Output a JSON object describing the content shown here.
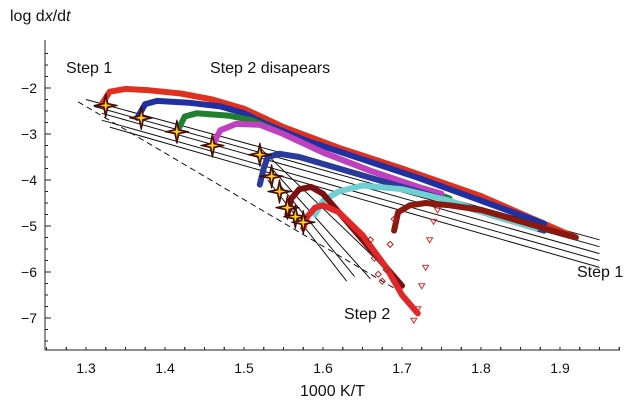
{
  "chart_data": {
    "type": "scatter",
    "title": "",
    "xlabel": "1000 K/T",
    "ylabel": "log dx/dt",
    "xlim": [
      1.25,
      1.97
    ],
    "ylim": [
      -7.5,
      -1.0
    ],
    "xticks": [
      "1.3",
      "1.4",
      "1.5",
      "1.6",
      "1.7",
      "1.8",
      "1.9"
    ],
    "yticks": [
      "−2",
      "−3",
      "−4",
      "−5",
      "−6",
      "−7"
    ],
    "grid": false,
    "annotations": [
      "Step 1",
      "Step 2 disapears",
      "Step 1",
      "Step 2"
    ],
    "series": [
      {
        "color": "#e03020",
        "marker": "dot",
        "x": [
          1.32,
          1.33,
          1.35,
          1.38,
          1.42,
          1.46,
          1.5,
          1.55,
          1.62,
          1.7,
          1.8,
          1.92
        ],
        "y": [
          -2.35,
          -2.08,
          -2.02,
          -2.05,
          -2.12,
          -2.25,
          -2.45,
          -2.85,
          -3.3,
          -3.75,
          -4.35,
          -5.25
        ]
      },
      {
        "color": "#2030a0",
        "marker": "dot",
        "x": [
          1.365,
          1.375,
          1.39,
          1.43,
          1.47,
          1.5,
          1.53,
          1.58,
          1.65,
          1.72,
          1.8,
          1.88
        ],
        "y": [
          -2.65,
          -2.35,
          -2.28,
          -2.32,
          -2.4,
          -2.55,
          -2.8,
          -3.15,
          -3.55,
          -3.95,
          -4.45,
          -4.95
        ]
      },
      {
        "color": "#208030",
        "marker": "dot",
        "x": [
          1.415,
          1.425,
          1.44,
          1.48,
          1.51,
          1.55,
          1.6,
          1.66,
          1.72,
          1.76
        ],
        "y": [
          -2.95,
          -2.62,
          -2.55,
          -2.6,
          -2.7,
          -3.0,
          -3.4,
          -3.8,
          -4.15,
          -4.4
        ]
      },
      {
        "color": "#c040c0",
        "marker": "dot",
        "x": [
          1.46,
          1.47,
          1.49,
          1.52,
          1.55,
          1.6,
          1.66,
          1.72,
          1.75
        ],
        "y": [
          -3.25,
          -2.92,
          -2.78,
          -2.8,
          -3.0,
          -3.4,
          -3.8,
          -4.15,
          -4.3
        ]
      },
      {
        "color": "#2a3a9a",
        "marker": "dot",
        "x": [
          1.52,
          1.525,
          1.53,
          1.545,
          1.57,
          1.62,
          1.68,
          1.75,
          1.82,
          1.88
        ],
        "y": [
          -4.1,
          -3.75,
          -3.5,
          -3.43,
          -3.5,
          -3.75,
          -4.05,
          -4.4,
          -4.8,
          -5.1
        ]
      },
      {
        "color": "#70d0d0",
        "marker": "dot",
        "x": [
          1.59,
          1.6,
          1.62,
          1.65,
          1.7,
          1.76,
          1.82,
          1.87
        ],
        "y": [
          -4.75,
          -4.45,
          -4.25,
          -4.12,
          -4.2,
          -4.45,
          -4.8,
          -5.05
        ]
      },
      {
        "color": "#7a1010",
        "marker": "dot",
        "x": [
          1.555,
          1.56,
          1.57,
          1.585,
          1.6,
          1.62,
          1.65,
          1.68,
          1.7
        ],
        "y": [
          -4.75,
          -4.4,
          -4.2,
          -4.15,
          -4.3,
          -4.7,
          -5.3,
          -5.9,
          -6.3
        ]
      },
      {
        "color": "#e02828",
        "marker": "dot",
        "x": [
          1.575,
          1.58,
          1.59,
          1.6,
          1.62,
          1.65,
          1.68,
          1.7,
          1.72
        ],
        "y": [
          -5.05,
          -4.8,
          -4.6,
          -4.55,
          -4.7,
          -5.2,
          -5.9,
          -6.5,
          -6.9
        ]
      },
      {
        "color": "#8a1a10",
        "marker": "dot",
        "x": [
          1.69,
          1.695,
          1.71,
          1.73,
          1.76,
          1.8,
          1.84,
          1.88,
          1.92
        ],
        "y": [
          -5.1,
          -4.7,
          -4.55,
          -4.5,
          -4.55,
          -4.65,
          -4.85,
          -5.05,
          -5.25
        ]
      },
      {
        "color": "#b02020",
        "marker": "open-diamond",
        "x": [
          1.66,
          1.665,
          1.67,
          1.675,
          1.68,
          1.685,
          1.69
        ],
        "y": [
          -5.3,
          -5.7,
          -6.05,
          -6.2,
          -5.95,
          -5.4,
          -4.85
        ]
      },
      {
        "color": "#d03030",
        "marker": "open-triangle",
        "x": [
          1.715,
          1.72,
          1.725,
          1.73,
          1.735,
          1.74,
          1.745
        ],
        "y": [
          -7.05,
          -6.8,
          -6.3,
          -5.9,
          -5.3,
          -4.9,
          -4.65
        ]
      },
      {
        "color": "#b8860b",
        "marker": "star",
        "x": [
          1.325,
          1.37,
          1.415,
          1.46,
          1.52,
          1.535,
          1.545,
          1.555,
          1.565,
          1.575
        ],
        "y": [
          -2.38,
          -2.65,
          -2.95,
          -3.25,
          -3.45,
          -3.92,
          -4.25,
          -4.6,
          -4.8,
          -4.92
        ]
      }
    ],
    "reference_lines": [
      {
        "style": "solid",
        "from": [
          1.3,
          -2.25
        ],
        "to": [
          1.95,
          -5.3
        ]
      },
      {
        "style": "solid",
        "from": [
          1.31,
          -2.4
        ],
        "to": [
          1.95,
          -5.45
        ]
      },
      {
        "style": "solid",
        "from": [
          1.32,
          -2.55
        ],
        "to": [
          1.95,
          -5.6
        ]
      },
      {
        "style": "solid",
        "from": [
          1.32,
          -2.7
        ],
        "to": [
          1.95,
          -5.75
        ]
      },
      {
        "style": "solid",
        "from": [
          1.33,
          -2.85
        ],
        "to": [
          1.95,
          -5.9
        ]
      },
      {
        "style": "dashed",
        "from": [
          1.29,
          -2.3
        ],
        "to": [
          1.69,
          -6.35
        ]
      },
      {
        "style": "solid",
        "from": [
          1.52,
          -3.3
        ],
        "to": [
          1.69,
          -6.1
        ]
      },
      {
        "style": "solid",
        "from": [
          1.535,
          -3.75
        ],
        "to": [
          1.66,
          -6.15
        ]
      },
      {
        "style": "solid",
        "from": [
          1.545,
          -4.1
        ],
        "to": [
          1.64,
          -6.1
        ]
      },
      {
        "style": "solid",
        "from": [
          1.53,
          -4.0
        ],
        "to": [
          1.63,
          -6.2
        ]
      }
    ]
  }
}
